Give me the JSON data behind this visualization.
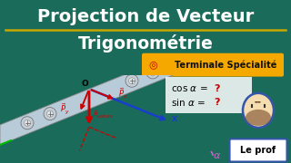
{
  "title_line1": "Projection de Vecteur",
  "title_line2": "Trigonométrie",
  "badge_text": "Terminale Spécialité",
  "badge_bg": "#f5a800",
  "header_bg": "#1a6b5a",
  "header_text": "#ffffff",
  "underline_color": "#c8a800",
  "diagram_bg": "#c8dce8",
  "arrow_Px_color": "#cc0000",
  "arrow_Py_color": "#cc0000",
  "arrow_Pvoiture_color": "#cc0000",
  "arrow_main_color": "#cc0000",
  "arrow_x_color": "#1a3ecc",
  "arrow_yellow_color": "#e8a000",
  "green_line_color": "#00bb00",
  "angle_color": "#cc66cc",
  "label_O": "O",
  "label_x": "x",
  "label_alpha": "α",
  "leprof_text": "Le prof",
  "leprof_bg": "#ffffff",
  "leprof_border": "#3355aa",
  "bottom_bg": "#c8dce8",
  "question_color": "#cc0000",
  "plane_face": "#b8cbd8",
  "plane_edge": "#888888"
}
